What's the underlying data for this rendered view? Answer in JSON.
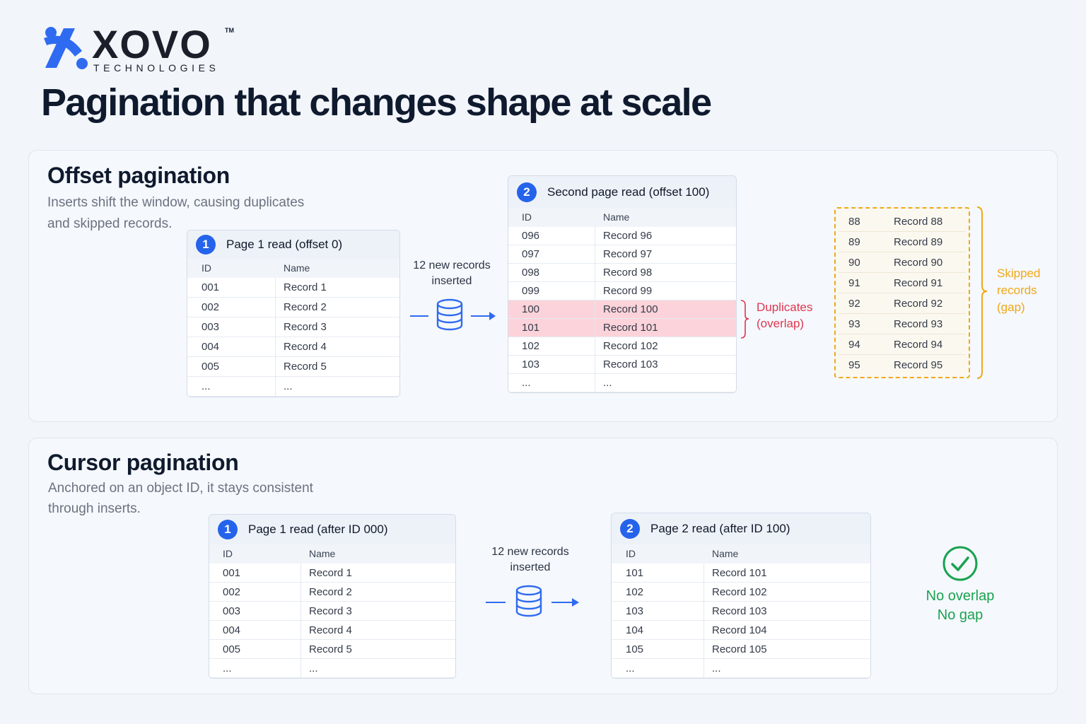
{
  "logo": {
    "wordmark": "XOVO",
    "trademark": "TM",
    "tagline": "TECHNOLOGIES"
  },
  "title": "Pagination that changes shape at scale",
  "offset": {
    "title": "Offset pagination",
    "subtitle": [
      "Inserts shift the window, causing duplicates",
      "and skipped records."
    ],
    "first_page": {
      "badge": "1",
      "title": "Page 1 read (offset 0)",
      "columns": [
        "ID",
        "Name"
      ],
      "rows": [
        [
          "001",
          "Record 1"
        ],
        [
          "002",
          "Record 2"
        ],
        [
          "003",
          "Record 3"
        ],
        [
          "004",
          "Record 4"
        ],
        [
          "005",
          "Record 5"
        ],
        [
          "...",
          "..."
        ]
      ]
    },
    "insert_label": [
      "12 new records",
      "inserted"
    ],
    "second_page": {
      "badge": "2",
      "title": "Second page read (offset 100)",
      "columns": [
        "ID",
        "Name"
      ],
      "rows": [
        [
          "096",
          "Record 96"
        ],
        [
          "097",
          "Record 97"
        ],
        [
          "098",
          "Record 98"
        ],
        [
          "099",
          "Record 99"
        ],
        [
          "100",
          "Record 100"
        ],
        [
          "101",
          "Record 101"
        ],
        [
          "102",
          "Record 102"
        ],
        [
          "103",
          "Record 103"
        ],
        [
          "...",
          "..."
        ]
      ],
      "highlighted_rows": [
        4,
        5
      ]
    },
    "duplicates_label": [
      "Duplicates",
      "(overlap)"
    ],
    "skipped": {
      "rows": [
        [
          "88",
          "Record 88"
        ],
        [
          "89",
          "Record 89"
        ],
        [
          "90",
          "Record 90"
        ],
        [
          "91",
          "Record 91"
        ],
        [
          "92",
          "Record 92"
        ],
        [
          "93",
          "Record 93"
        ],
        [
          "94",
          "Record 94"
        ],
        [
          "95",
          "Record 95"
        ]
      ]
    },
    "skipped_label": [
      "Skipped",
      "records",
      "(gap)"
    ]
  },
  "cursor": {
    "title": "Cursor pagination",
    "subtitle": [
      "Anchored on an object ID, it stays consistent",
      "through inserts."
    ],
    "first_page": {
      "badge": "1",
      "title": "Page 1 read (after ID 000)",
      "columns": [
        "ID",
        "Name"
      ],
      "rows": [
        [
          "001",
          "Record 1"
        ],
        [
          "002",
          "Record 2"
        ],
        [
          "003",
          "Record 3"
        ],
        [
          "004",
          "Record 4"
        ],
        [
          "005",
          "Record 5"
        ],
        [
          "...",
          "..."
        ]
      ]
    },
    "insert_label": [
      "12 new records",
      "inserted"
    ],
    "second_page": {
      "badge": "2",
      "title": "Page 2 read (after ID 100)",
      "columns": [
        "ID",
        "Name"
      ],
      "rows": [
        [
          "101",
          "Record 101"
        ],
        [
          "102",
          "Record 102"
        ],
        [
          "103",
          "Record 103"
        ],
        [
          "104",
          "Record 104"
        ],
        [
          "105",
          "Record 105"
        ],
        [
          "...",
          "..."
        ]
      ]
    },
    "result_label": [
      "No overlap",
      "No gap"
    ]
  }
}
